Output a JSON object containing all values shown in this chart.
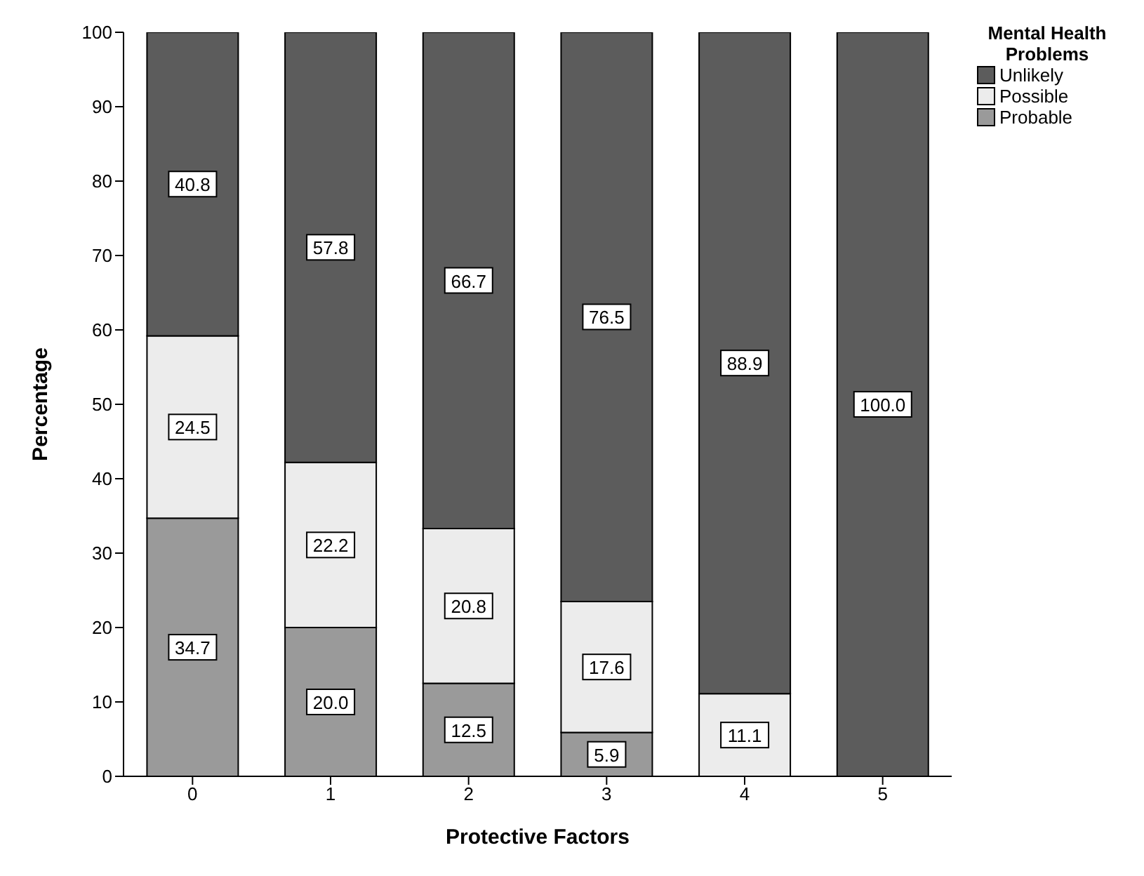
{
  "chart_data": {
    "type": "bar",
    "stacked": true,
    "xlabel": "Protective Factors",
    "ylabel": "Percentage",
    "legend_title": "Mental Health Problems",
    "legend": "top right",
    "categories": [
      "0",
      "1",
      "2",
      "3",
      "4",
      "5"
    ],
    "series": [
      {
        "name": "Probable",
        "color": "#9a9a9a",
        "values": [
          34.7,
          20.0,
          12.5,
          5.9,
          null,
          null
        ],
        "value_labels": [
          "34.7",
          "20.0",
          "12.5",
          "5.9",
          null,
          null
        ]
      },
      {
        "name": "Possible",
        "color": "#ececec",
        "values": [
          24.5,
          22.2,
          20.8,
          17.6,
          11.1,
          null
        ],
        "value_labels": [
          "24.5",
          "22.2",
          "20.8",
          "17.6",
          "11.1",
          null
        ]
      },
      {
        "name": "Unlikely",
        "color": "#5c5c5c",
        "values": [
          40.8,
          57.8,
          66.7,
          76.5,
          88.9,
          100.0
        ],
        "value_labels": [
          "40.8",
          "57.8",
          "66.7",
          "76.5",
          "88.9",
          "100.0"
        ]
      }
    ],
    "ylim": [
      0,
      100
    ],
    "yticks": [
      0,
      10,
      20,
      30,
      40,
      50,
      60,
      70,
      80,
      90,
      100
    ],
    "grid": false
  }
}
